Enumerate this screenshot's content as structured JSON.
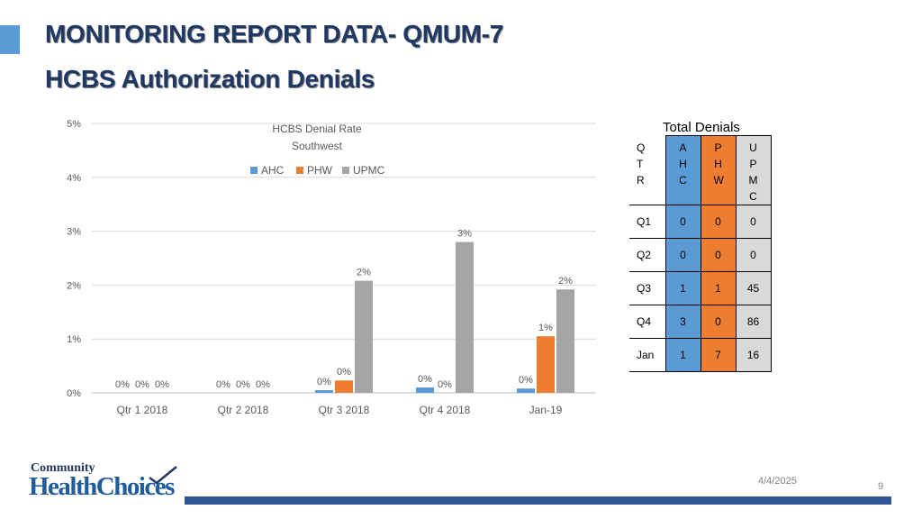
{
  "slide": {
    "title_line1": "MONITORING REPORT DATA- QMUM-7",
    "title_line2": "HCBS Authorization Denials",
    "date": "4/4/2025",
    "page_number": "9",
    "logo": {
      "line1": "Community",
      "line2": "HealthChoices"
    }
  },
  "colors": {
    "AHC": "#5b9bd5",
    "PHW": "#ed7d31",
    "UPMC": "#a5a5a5",
    "title": "#1f3864",
    "footer_bar": "#2f5597"
  },
  "chart_data": {
    "type": "bar",
    "title": "HCBS Denial Rate",
    "subtitle": "Southwest",
    "categories": [
      "Qtr 1 2018",
      "Qtr 2 2018",
      "Qtr 3 2018",
      "Qtr 4 2018",
      "Jan-19"
    ],
    "series": [
      {
        "name": "AHC",
        "values": [
          0,
          0,
          0.05,
          0.1,
          0.08
        ],
        "labels": [
          "0%",
          "0%",
          "0%",
          "0%",
          "0%"
        ]
      },
      {
        "name": "PHW",
        "values": [
          0,
          0,
          0.23,
          0,
          1.05
        ],
        "labels": [
          "0%",
          "0%",
          "0%",
          "0%",
          "1%"
        ]
      },
      {
        "name": "UPMC",
        "values": [
          0,
          0,
          2.08,
          2.8,
          1.92
        ],
        "labels": [
          "0%",
          "0%",
          "2%",
          "3%",
          "2%"
        ]
      }
    ],
    "ylim": [
      0,
      5
    ],
    "yticks": [
      "0%",
      "1%",
      "2%",
      "3%",
      "4%",
      "5%"
    ],
    "grid": true,
    "legend_position": "top"
  },
  "table": {
    "title": "Total Denials",
    "headers": [
      "QTR",
      "AHC",
      "PHW",
      "UPMC"
    ],
    "rows": [
      {
        "label": "Q1",
        "AHC": "0",
        "PHW": "0",
        "UPMC": "0"
      },
      {
        "label": "Q2",
        "AHC": "0",
        "PHW": "0",
        "UPMC": "0"
      },
      {
        "label": "Q3",
        "AHC": "1",
        "PHW": "1",
        "UPMC": "45"
      },
      {
        "label": "Q4",
        "AHC": "3",
        "PHW": "0",
        "UPMC": "86"
      },
      {
        "label": "Jan",
        "AHC": "1",
        "PHW": "7",
        "UPMC": "16"
      }
    ]
  }
}
